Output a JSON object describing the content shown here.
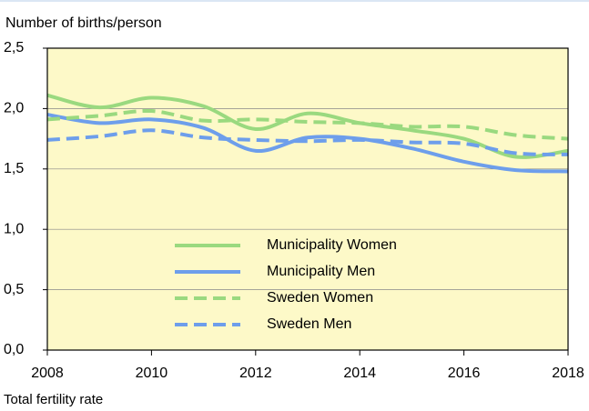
{
  "chart_data": {
    "type": "line",
    "title": "Number of births/person",
    "caption": "Total fertility rate",
    "x": [
      2008,
      2009,
      2010,
      2011,
      2012,
      2013,
      2014,
      2015,
      2016,
      2017,
      2018
    ],
    "xlim": [
      2008,
      2018
    ],
    "xticks": [
      2008,
      2010,
      2012,
      2014,
      2016,
      2018
    ],
    "ylim": [
      0,
      2.5
    ],
    "yticks": [
      {
        "value": 0,
        "label": "0,0"
      },
      {
        "value": 0.5,
        "label": "0,5"
      },
      {
        "value": 1,
        "label": "1,0"
      },
      {
        "value": 1.5,
        "label": "1,5"
      },
      {
        "value": 2,
        "label": "2,0"
      },
      {
        "value": 2.5,
        "label": "2,5"
      }
    ],
    "grid": true,
    "series": [
      {
        "name": "Municipality Women",
        "color": "#9ad97f",
        "dashed": false,
        "values": [
          2.11,
          2.01,
          2.09,
          2.02,
          1.83,
          1.96,
          1.88,
          1.82,
          1.75,
          1.6,
          1.65
        ]
      },
      {
        "name": "Municipality Men",
        "color": "#6d9eeb",
        "dashed": false,
        "values": [
          1.95,
          1.88,
          1.91,
          1.84,
          1.65,
          1.76,
          1.75,
          1.67,
          1.56,
          1.49,
          1.48
        ]
      },
      {
        "name": "Sweden Women",
        "color": "#9ad97f",
        "dashed": true,
        "values": [
          1.91,
          1.94,
          1.98,
          1.9,
          1.91,
          1.89,
          1.88,
          1.85,
          1.85,
          1.78,
          1.75
        ]
      },
      {
        "name": "Sweden Men",
        "color": "#6d9eeb",
        "dashed": true,
        "values": [
          1.74,
          1.77,
          1.82,
          1.76,
          1.74,
          1.73,
          1.74,
          1.72,
          1.71,
          1.63,
          1.62
        ]
      }
    ]
  }
}
